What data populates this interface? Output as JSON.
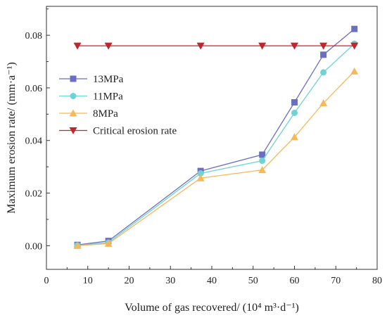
{
  "chart_data": {
    "type": "line",
    "xlabel": "Volume of gas recovered/ (10⁴ m³·d⁻¹)",
    "ylabel": "Maximum erosion rate/ (mm·a⁻¹)",
    "xlim": [
      0,
      80
    ],
    "ylim": [
      -0.009,
      0.091
    ],
    "xticks": [
      0,
      10,
      20,
      30,
      40,
      50,
      60,
      70,
      80
    ],
    "yticks": [
      0.0,
      0.02,
      0.04,
      0.06,
      0.08
    ],
    "ytick_labels": [
      "0.00",
      "0.02",
      "0.04",
      "0.06",
      "0.08"
    ],
    "grid": false,
    "legend_position": "upper-left",
    "x": [
      7.5,
      15,
      37.3,
      52.2,
      60,
      67,
      74.5
    ],
    "series": [
      {
        "name": "13MPa",
        "marker": "square",
        "color": "#6b6fc2",
        "values": [
          0.0003,
          0.0018,
          0.0284,
          0.0346,
          0.0545,
          0.0726,
          0.0824
        ]
      },
      {
        "name": "11MPa",
        "marker": "circle",
        "color": "#6fd3d3",
        "values": [
          0.0001,
          0.0012,
          0.0275,
          0.0323,
          0.0505,
          0.0659,
          0.0768
        ]
      },
      {
        "name": "8MPa",
        "marker": "triangle-up",
        "color": "#f5b85a",
        "values": [
          0.0,
          0.0008,
          0.0257,
          0.0288,
          0.0413,
          0.0542,
          0.0663
        ]
      },
      {
        "name": "Critical erosion rate",
        "marker": "triangle-down",
        "color": "#c0262c",
        "values": [
          0.076,
          0.076,
          0.076,
          0.076,
          0.076,
          0.076,
          0.076
        ]
      }
    ]
  }
}
